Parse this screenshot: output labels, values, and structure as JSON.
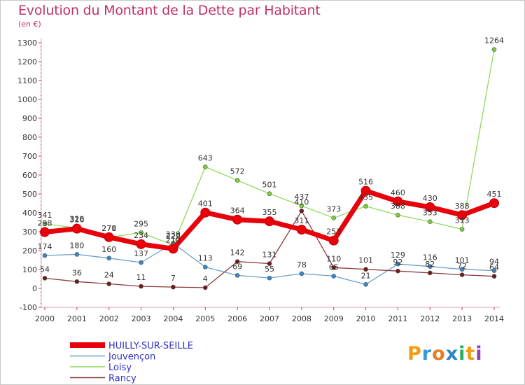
{
  "title": "Evolution du Montant de la Dette par Habitant",
  "subtitle": "(en €)",
  "logo": {
    "letters": [
      "P",
      "r",
      "o",
      "x",
      "i",
      "t",
      "i"
    ],
    "colors": [
      "#f39c12",
      "#3498db",
      "#e67e22",
      "#2e86c1",
      "#27ae60",
      "#f39c12",
      "#8e44ad"
    ]
  },
  "chart_data": {
    "type": "line",
    "title": "Evolution du Montant de la Dette par Habitant",
    "ylabel": "(en €)",
    "xlabel": "",
    "x": [
      2000,
      2001,
      2002,
      2003,
      2004,
      2005,
      2006,
      2007,
      2008,
      2009,
      2010,
      2011,
      2012,
      2013,
      2014
    ],
    "x_tick_labels": [
      "2000",
      "2001",
      "2002",
      "2003",
      "2004",
      "2005",
      "2006",
      "2007",
      "2008",
      "2009",
      "2010",
      "2011",
      "2012",
      "2013",
      "2014"
    ],
    "y_ticks": [
      -100,
      0,
      100,
      200,
      300,
      400,
      500,
      600,
      700,
      800,
      900,
      1000,
      1100,
      1200,
      1300
    ],
    "y_tick_labels": [
      "-100",
      "0",
      "100",
      "200",
      "300",
      "400",
      "500",
      "600",
      "700",
      "800",
      "900",
      "1000",
      "1100",
      "1200",
      "1300"
    ],
    "ylim": [
      -100,
      1300
    ],
    "grid": false,
    "legend_position": "bottom-left",
    "series": [
      {
        "name": "HUILLY-SUR-SEILLE",
        "color": "#e8000b",
        "marker": "#e8000b",
        "width": 7,
        "values": [
          298,
          316,
          271,
          234,
          210,
          401,
          364,
          355,
          311,
          253,
          516,
          460,
          430,
          388,
          451
        ],
        "labels": [
          "298",
          "316",
          "271",
          "234",
          "210",
          "401",
          "364",
          "355",
          "311",
          "253",
          "516",
          "460",
          "430",
          "388",
          "451"
        ]
      },
      {
        "name": "Jouvençon",
        "color": "#6aa0c8",
        "marker": "#3a86c6",
        "width": 1.3,
        "values": [
          174,
          180,
          160,
          137,
          239,
          113,
          69,
          55,
          78,
          65,
          21,
          129,
          116,
          101,
          94
        ],
        "labels": [
          "174",
          "180",
          "160",
          "137",
          "239",
          "113",
          "69",
          "55",
          "78",
          "65",
          "21",
          "129",
          "116",
          "101",
          "94"
        ]
      },
      {
        "name": "Loisy",
        "color": "#8edb5a",
        "marker": "#7ccd3e",
        "width": 1.3,
        "values": [
          341,
          320,
          270,
          295,
          229,
          643,
          572,
          501,
          437,
          373,
          435,
          388,
          353,
          313,
          1264
        ],
        "labels": [
          "341",
          "320",
          "270",
          "295",
          "229",
          "643",
          "572",
          "501",
          "437",
          "373",
          "435",
          "388",
          "353",
          "313",
          "1264"
        ]
      },
      {
        "name": "Rancy",
        "color": "#8c3a3a",
        "marker": "#6b1c1c",
        "width": 1.3,
        "values": [
          54,
          36,
          24,
          11,
          7,
          4,
          142,
          131,
          410,
          110,
          101,
          92,
          82,
          72,
          64
        ],
        "labels": [
          "54",
          "36",
          "24",
          "11",
          "7",
          "4",
          "142",
          "131",
          "410",
          "110",
          "101",
          "92",
          "82",
          "72",
          "64"
        ]
      }
    ]
  }
}
